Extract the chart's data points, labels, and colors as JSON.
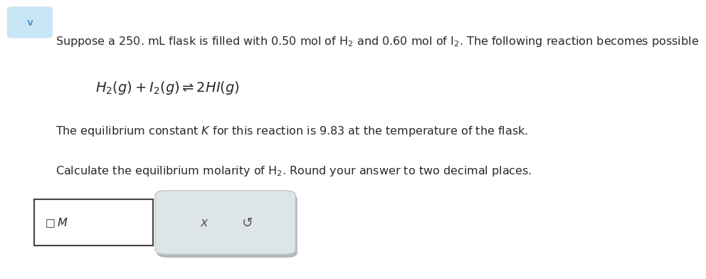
{
  "background_color": "#ffffff",
  "top_btn_color": "#c8e6f5",
  "chevron_color": "#5b9bd5",
  "line1": "Suppose a 250. mL flask is filled with 0.50 mol of H$_2$ and 0.60 mol of I$_2$. The following reaction becomes possible",
  "equation": "$H_2(g)+I_2(g)\\rightleftharpoons 2HI(g)$",
  "line3": "The equilibrium constant $K$ for this reaction is 9.83 at the temperature of the flask.",
  "line4": "Calculate the equilibrium molarity of H$_2$. Round your answer to two decimal places.",
  "checkbox_symbol": "□",
  "unit_M": "M",
  "x_symbol": "x",
  "refresh_symbol": "↺",
  "font_size_main": 11.5,
  "font_size_eq": 14,
  "text_color": "#2a2a2a",
  "input_border_color": "#444444",
  "button_border_color": "#c0c8cc",
  "button_bg_color": "#dde5e8",
  "button_shadow_color": "#b0b8bc"
}
